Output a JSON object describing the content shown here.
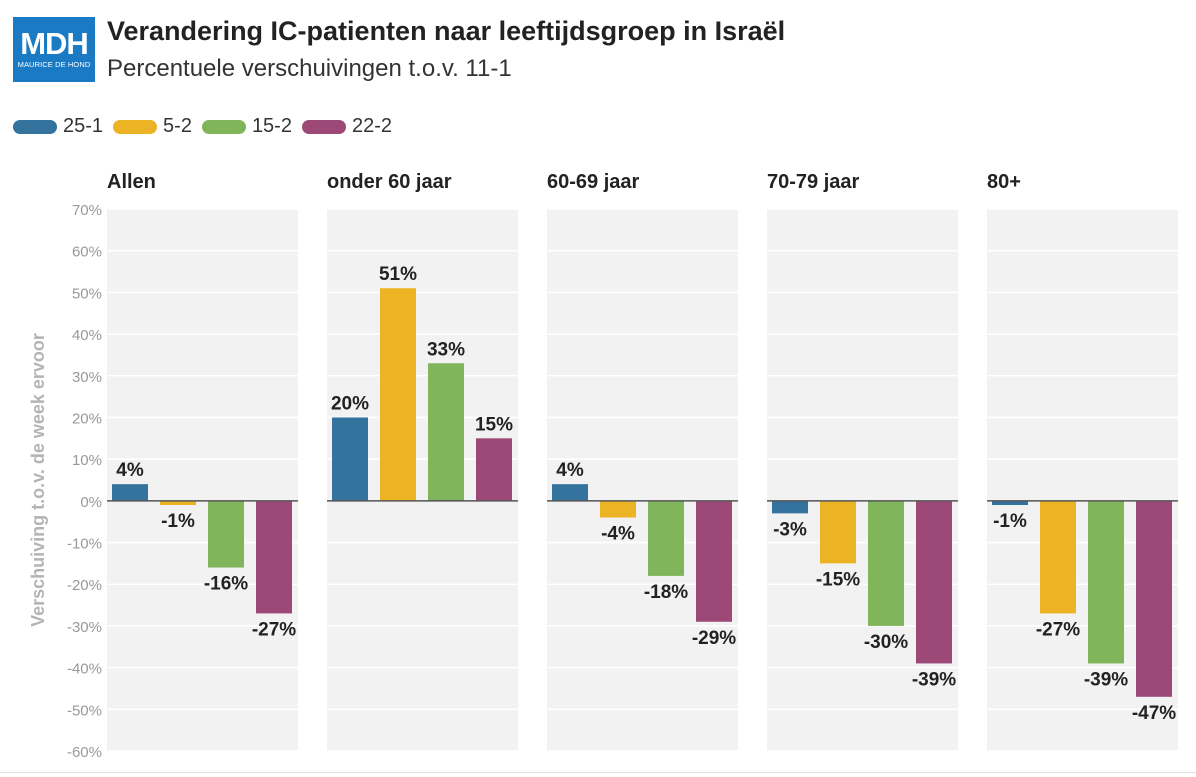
{
  "logo": {
    "main": "MDH",
    "sub": "MAURICE DE HOND"
  },
  "header": {
    "title": "Verandering IC-patienten naar leeftijdsgroep in Israël",
    "subtitle": "Percentuele verschuivingen t.o.v. 11-1"
  },
  "chart_data": {
    "type": "bar",
    "title": "Verandering IC-patienten naar leeftijdsgroep in Israël",
    "subtitle": "Percentuele verschuivingen t.o.v. 11-1",
    "ylabel": "Verschuiving t.o.v. de week ervoor",
    "xlabel": "",
    "ylim": [
      -60,
      70
    ],
    "yticks": [
      70,
      60,
      50,
      40,
      30,
      20,
      10,
      0,
      -10,
      -20,
      -30,
      -40,
      -50,
      -60
    ],
    "ytick_labels": [
      "70%",
      "60%",
      "50%",
      "40%",
      "30%",
      "20%",
      "10%",
      "0%",
      "-10%",
      "-20%",
      "-30%",
      "-40%",
      "-50%",
      "-60%"
    ],
    "grid": true,
    "legend_position": "top-left",
    "categories": [
      "Allen",
      "onder 60 jaar",
      "60-69 jaar",
      "70-79 jaar",
      "80+"
    ],
    "series": [
      {
        "name": "25-1",
        "color": "#33739e",
        "values": [
          4,
          20,
          4,
          -3,
          -1
        ],
        "labels": [
          "4%",
          "20%",
          "4%",
          "-3%",
          "-1%"
        ]
      },
      {
        "name": "5-2",
        "color": "#ecb325",
        "values": [
          -1,
          51,
          -4,
          -15,
          -27
        ],
        "labels": [
          "-1%",
          "51%",
          "-4%",
          "-15%",
          "-27%"
        ]
      },
      {
        "name": "15-2",
        "color": "#80b55b",
        "values": [
          -16,
          33,
          -18,
          -30,
          -39
        ],
        "labels": [
          "-16%",
          "33%",
          "-18%",
          "-30%",
          "-39%"
        ]
      },
      {
        "name": "22-2",
        "color": "#9c4978",
        "values": [
          -27,
          15,
          -29,
          -39,
          -47
        ],
        "labels": [
          "-27%",
          "15%",
          "-29%",
          "-39%",
          "-47%"
        ]
      }
    ]
  }
}
